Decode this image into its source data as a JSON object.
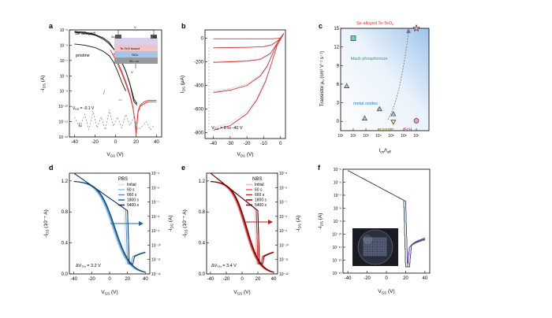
{
  "panels": {
    "a": {
      "letter": "a",
      "legend_top": "Se alloyed",
      "legend_bottom": "pristine",
      "vds_note": "V",
      "vds_sub": "DS",
      "vds_val": " = -0.1 V",
      "ig_note": "I",
      "ig_sub": "G",
      "ylabel_main": "-I",
      "ylabel_sub": "DS",
      "ylabel_unit": " (A)",
      "xlabel_main": "V",
      "xlabel_sub": "GS",
      "xlabel_unit": " (V)",
      "inset_layers": [
        "Te-TeO",
        "SiO",
        "Si"
      ],
      "inset_layer_suffix": [
        " based",
        "2",
        "++ (G)"
      ],
      "inset_au_left": "Au",
      "inset_au_right": "Au",
      "inset_vds": "V",
      "inset_vgs": "V"
    },
    "b": {
      "letter": "b",
      "note_main": "V",
      "note_sub": "GS",
      "note_val": " = 0 to -40 V",
      "ylabel_main": "I",
      "ylabel_sub": "DS",
      "ylabel_unit": " (μA)",
      "xlabel_main": "V",
      "xlabel_sub": "DS",
      "xlabel_unit": " (V)"
    },
    "c": {
      "letter": "c",
      "ylabel": "Transistor μ",
      "ylabel_sub": "h",
      "ylabel_unit": " (cm² V⁻¹ s⁻¹)",
      "xlabel": "I",
      "xlabel_sub1": "on",
      "xlabel_sep": "/I",
      "xlabel_sub2": "off",
      "labels": {
        "se": "Se-alloyed Te-TeO",
        "se_sub": "x",
        "bp": "black phosphorous",
        "mo": "metal oxides",
        "org": "organics",
        "si": "Si:H"
      }
    },
    "d": {
      "letter": "d",
      "legend_title": "PBS",
      "legend": [
        "Initial",
        "60 s",
        "660 s",
        "1800 s",
        "5400 s"
      ],
      "dv": "ΔV",
      "dv_sub": "TH",
      "dv_val": " = 3.2 V",
      "ylabel_l_main": "-I",
      "ylabel_l_sub": "DS",
      "ylabel_l_unit": " (10⁻⁵ A)",
      "ylabel_r_main": "-I",
      "ylabel_r_sub": "DS",
      "ylabel_r_unit": " (A)",
      "xlabel_main": "V",
      "xlabel_sub": "GS",
      "xlabel_unit": " (V)"
    },
    "e": {
      "letter": "e",
      "legend_title": "NBS",
      "legend": [
        "Initial",
        "60 s",
        "660 s",
        "1800 s",
        "5400 s"
      ],
      "dv": "ΔV",
      "dv_sub": "TH",
      "dv_val": " = 3.4 V",
      "ylabel_l_main": "-I",
      "ylabel_l_sub": "DS",
      "ylabel_l_unit": " (10⁻⁵ A)",
      "ylabel_r_main": "-I",
      "ylabel_r_sub": "DS",
      "ylabel_r_unit": " (A)",
      "xlabel_main": "V",
      "xlabel_sub": "GS",
      "xlabel_unit": " (V)"
    },
    "f": {
      "letter": "f",
      "ylabel_main": "-I",
      "ylabel_sub": "DS",
      "ylabel_unit": " (A)",
      "xlabel_main": "V",
      "xlabel_sub": "GS",
      "xlabel_unit": " (V)"
    }
  },
  "chart_data": [
    {
      "panel": "a",
      "type": "line",
      "xlim": [
        -45,
        45
      ],
      "xticks": [
        -40,
        -20,
        0,
        20,
        40
      ],
      "ylog": true,
      "ylim": [
        1e-12,
        1e-05
      ],
      "ytick_labels": [
        "10⁻⁵",
        "10⁻⁶",
        "10⁻⁷",
        "10⁻⁸",
        "10⁻⁹",
        "10⁻¹⁰",
        "10⁻¹¹",
        "10⁻¹²"
      ],
      "series": [
        {
          "color": "#111111",
          "x": [
            -40,
            -30,
            -20,
            -12,
            -6,
            -2,
            2,
            6,
            10,
            14,
            18,
            21
          ],
          "y": [
            8e-06,
            7e-06,
            5e-06,
            3e-06,
            1.5e-06,
            6e-07,
            2.5e-07,
            8e-08,
            2e-08,
            3e-09,
            2e-10,
            1.2e-10
          ]
        },
        {
          "color": "#111111",
          "x": [
            -40,
            -30,
            -20,
            -12,
            -6,
            0,
            6,
            10,
            14,
            18,
            21
          ],
          "y": [
            7e-06,
            6e-06,
            4.5e-06,
            2.5e-06,
            1.2e-06,
            4e-07,
            8e-08,
            2e-08,
            3e-09,
            3e-10,
            1.5e-10
          ]
        },
        {
          "color": "#111111",
          "x": [
            -40,
            -30,
            -20,
            -12,
            -6,
            -2,
            2,
            6,
            10
          ],
          "y": [
            1.2e-06,
            1e-06,
            7e-07,
            4e-07,
            2e-07,
            8e-08,
            2e-08,
            4e-09,
            1e-09
          ]
        },
        {
          "color": "#e03030",
          "x": [
            -5,
            -2,
            2,
            6,
            10,
            14,
            17,
            19,
            20,
            21,
            22,
            24,
            28,
            32,
            36,
            40
          ],
          "y": [
            5e-07,
            2e-07,
            6e-08,
            1.5e-08,
            3e-09,
            5e-10,
            8e-11,
            1e-11,
            2e-12,
            1e-11,
            5e-11,
            1.2e-10,
            2e-10,
            2.5e-10,
            2.5e-10,
            2.5e-10
          ]
        },
        {
          "color": "#e03030",
          "x": [
            -2,
            2,
            6,
            10,
            14,
            17,
            19,
            20,
            21,
            22,
            24,
            28,
            32,
            36,
            40
          ],
          "y": [
            3e-07,
            8e-08,
            2e-08,
            4e-09,
            6e-10,
            9e-11,
            1e-11,
            1.5e-12,
            8e-12,
            4e-11,
            1e-10,
            1.5e-10,
            2e-10,
            2e-10,
            2e-10
          ]
        },
        {
          "color": "#999999",
          "dash": "2,2",
          "x": [
            -40,
            -35,
            -30,
            -26,
            -22,
            -18,
            -14,
            -10,
            -6,
            -2,
            2,
            6,
            10,
            14,
            18,
            22,
            26,
            30,
            34,
            38
          ],
          "y": [
            2e-11,
            4e-12,
            3e-11,
            3e-12,
            5e-11,
            4e-12,
            2e-11,
            3e-12,
            6e-11,
            5e-12,
            2e-11,
            4e-12,
            3e-11,
            6e-12,
            2e-11,
            3e-12,
            5e-12,
            1e-11,
            3e-12,
            6e-12
          ]
        }
      ]
    },
    {
      "panel": "b",
      "type": "line",
      "xlim": [
        -45,
        3
      ],
      "xticks": [
        -40,
        -30,
        -20,
        -10,
        0
      ],
      "ylim": [
        -850,
        70
      ],
      "yticks": [
        -800,
        -600,
        -400,
        -200,
        0
      ],
      "series": [
        {
          "vgs": 0,
          "x": [
            -40,
            -30,
            -20,
            -10,
            -5,
            -2,
            0,
            2
          ],
          "y": [
            -5,
            -5,
            -5,
            -5,
            -5,
            -2,
            0,
            40
          ]
        },
        {
          "vgs": -10,
          "x": [
            -40,
            -30,
            -20,
            -10,
            -5,
            -2,
            0,
            2
          ],
          "y": [
            -82,
            -80,
            -78,
            -72,
            -55,
            -25,
            0,
            40
          ]
        },
        {
          "vgs": -20,
          "x": [
            -40,
            -30,
            -20,
            -12,
            -6,
            -3,
            0,
            2
          ],
          "y": [
            -205,
            -200,
            -195,
            -180,
            -130,
            -65,
            0,
            40
          ]
        },
        {
          "vgs": -30,
          "x": [
            -40,
            -30,
            -20,
            -12,
            -8,
            -4,
            -1,
            2
          ],
          "y": [
            -460,
            -440,
            -400,
            -320,
            -240,
            -110,
            -15,
            40
          ]
        },
        {
          "vgs": -40,
          "x": [
            -40,
            -30,
            -20,
            -14,
            -9,
            -5,
            -2,
            2
          ],
          "y": [
            -780,
            -740,
            -640,
            -520,
            -370,
            -200,
            -60,
            40
          ]
        }
      ]
    },
    {
      "panel": "c",
      "type": "scatter",
      "xlog": true,
      "xlim": [
        10,
        100000000.0
      ],
      "xtick_labels": [
        "10¹",
        "10²",
        "10³",
        "10⁴",
        "10⁵",
        "10⁶",
        "10⁷"
      ],
      "ylim": [
        -1.5,
        15
      ],
      "yticks": [
        0,
        3,
        6,
        9,
        12,
        15
      ],
      "points": [
        {
          "x": 10000000.0,
          "y": 15,
          "marker": "star",
          "group": "Se-alloyed Te-TeOx"
        },
        {
          "x": 100,
          "y": 13.4,
          "marker": "square",
          "group": "black phosphorous"
        },
        {
          "x": 30,
          "y": 5.7,
          "marker": "triangle",
          "group": "metal oxides"
        },
        {
          "x": 800,
          "y": 0.5,
          "marker": "triangle",
          "group": "metal oxides"
        },
        {
          "x": 12000.0,
          "y": 2.0,
          "marker": "triangle",
          "group": "metal oxides"
        },
        {
          "x": 150000.0,
          "y": 1.2,
          "marker": "triangle",
          "group": "metal oxides"
        },
        {
          "x": 150000.0,
          "y": -0.1,
          "marker": "triangle-down",
          "group": "organics"
        },
        {
          "x": 10000000.0,
          "y": 0.1,
          "marker": "circle",
          "group": "Si:H"
        }
      ]
    },
    {
      "panel": "d",
      "type": "line",
      "xlim": [
        -45,
        45
      ],
      "xticks": [
        -40,
        -20,
        0,
        20,
        40
      ],
      "ylim_left": [
        0,
        1.3
      ],
      "yticks_left": [
        0,
        0.4,
        0.8,
        1.2
      ],
      "ylim_right_log": [
        1e-12,
        1e-05
      ],
      "ytick_labels_right": [
        "10⁻⁵",
        "10⁻⁶",
        "10⁻⁷",
        "10⁻⁸",
        "10⁻⁹",
        "10⁻¹⁰",
        "10⁻¹¹",
        "10⁻¹²"
      ],
      "series_colors": [
        "#c9e3f6",
        "#8fc3ea",
        "#4f97d2",
        "#2166ac",
        "#0b2f60"
      ]
    },
    {
      "panel": "e",
      "type": "line",
      "xlim": [
        -45,
        45
      ],
      "xticks": [
        -40,
        -20,
        0,
        20,
        40
      ],
      "ylim_left": [
        0,
        1.3
      ],
      "yticks_left": [
        0,
        0.4,
        0.8,
        1.2
      ],
      "ylim_right_log": [
        1e-12,
        1e-05
      ],
      "ytick_labels_right": [
        "10⁻⁵",
        "10⁻⁶",
        "10⁻⁷",
        "10⁻⁸",
        "10⁻⁹",
        "10⁻¹⁰",
        "10⁻¹¹",
        "10⁻¹²"
      ],
      "series_colors": [
        "#f4b8b8",
        "#e86060",
        "#d42020",
        "#a00000",
        "#5a0000"
      ]
    },
    {
      "panel": "f",
      "type": "line",
      "xlim": [
        -45,
        45
      ],
      "xticks": [
        -40,
        -20,
        0,
        20,
        40
      ],
      "ylog": true,
      "ylim": [
        1e-13,
        1e-05
      ],
      "ytick_labels": [
        "10⁻⁵",
        "10⁻⁶",
        "10⁻⁷",
        "10⁻⁸",
        "10⁻⁹",
        "10⁻¹⁰",
        "10⁻¹¹",
        "10⁻¹²",
        "10⁻¹³"
      ],
      "series_colors": [
        "#1f3a93",
        "#6a2fb0",
        "#2a7d2a",
        "#0f7f8f",
        "#8c2a8c"
      ]
    }
  ]
}
